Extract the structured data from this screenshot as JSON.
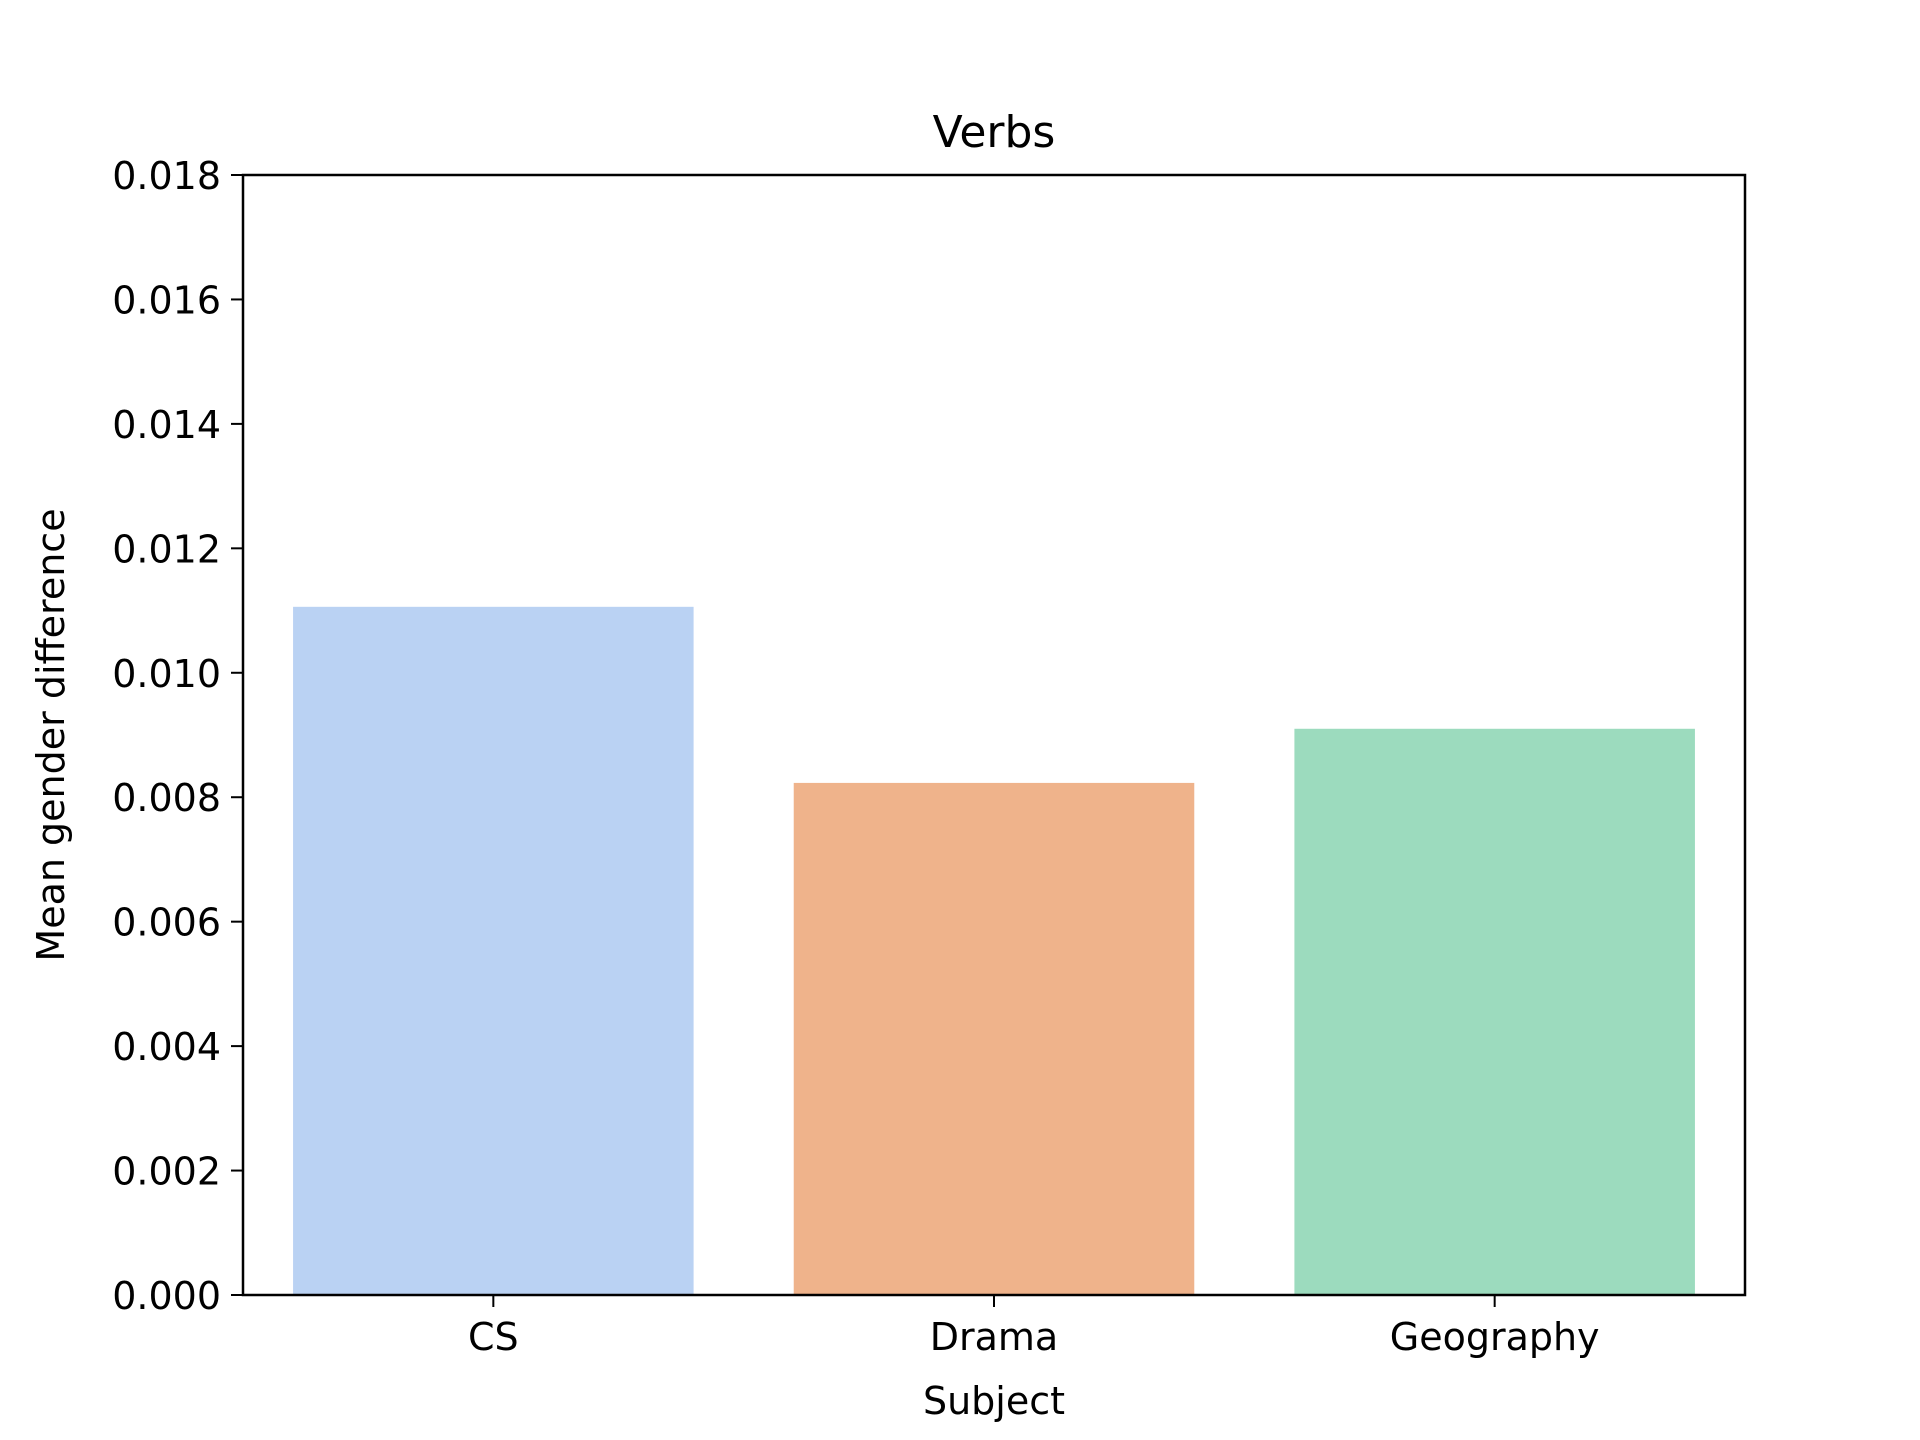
{
  "chart_data": {
    "type": "bar",
    "title": "Verbs",
    "xlabel": "Subject",
    "ylabel": "Mean gender difference",
    "categories": [
      "CS",
      "Drama",
      "Geography"
    ],
    "values": [
      0.01106,
      0.00823,
      0.0091
    ],
    "colors": [
      "#bad2f3",
      "#efb38b",
      "#9cdbbe"
    ],
    "ylim": [
      0,
      0.018
    ],
    "yticks": [
      "0.000",
      "0.002",
      "0.004",
      "0.006",
      "0.008",
      "0.010",
      "0.012",
      "0.014",
      "0.016",
      "0.018"
    ],
    "grid": false,
    "legend": "none"
  }
}
